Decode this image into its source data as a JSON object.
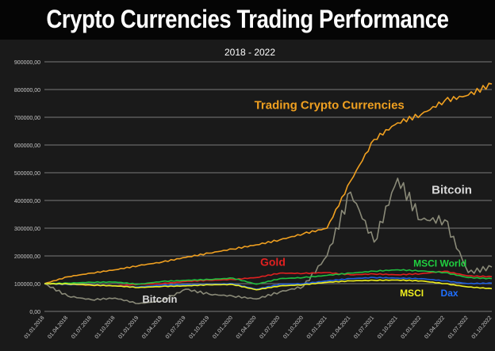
{
  "title": "Crypto Currencies Trading Performance",
  "chart_data": {
    "type": "line",
    "subtitle": "2018 - 2022",
    "ylim": [
      0,
      900000
    ],
    "yticks": [
      0,
      100000,
      200000,
      300000,
      400000,
      500000,
      600000,
      700000,
      800000,
      900000
    ],
    "ytick_labels": [
      "0,00",
      "100000,00",
      "200000,00",
      "300000,00",
      "400000,00",
      "500000,00",
      "600000,00",
      "700000,00",
      "800000,00",
      "900000,00"
    ],
    "x_categories": [
      "01.01.2018",
      "01.04.2018",
      "01.07.2018",
      "01.10.2018",
      "01.01.2019",
      "01.04.2019",
      "01.07.2019",
      "01.10.2019",
      "01.01.2020",
      "01.04.2020",
      "01.07.2020",
      "01.10.2020",
      "01.01.2021",
      "01.04.2021",
      "01.07.2021",
      "01.10.2021",
      "01.01.2022",
      "01.04.2022",
      "01.07.2022",
      "01.10.2022"
    ],
    "grid": true,
    "series": [
      {
        "name": "Trading Crypto Currencies",
        "color": "#f0a020",
        "values": [
          100000,
          125000,
          138000,
          150000,
          165000,
          178000,
          195000,
          210000,
          225000,
          240000,
          258000,
          280000,
          300000,
          470000,
          620000,
          680000,
          710000,
          760000,
          780000,
          820000
        ]
      },
      {
        "name": "Bitcoin",
        "color": "#8a8a78",
        "values": [
          100000,
          55000,
          42000,
          48000,
          28000,
          38000,
          80000,
          62000,
          55000,
          45000,
          70000,
          90000,
          200000,
          430000,
          250000,
          480000,
          330000,
          330000,
          140000,
          160000
        ]
      },
      {
        "name": "Gold",
        "color": "#e02020",
        "values": [
          100000,
          98000,
          94000,
          92000,
          98000,
          100000,
          108000,
          112000,
          115000,
          122000,
          138000,
          137000,
          140000,
          132000,
          135000,
          132000,
          136000,
          145000,
          128000,
          125000
        ]
      },
      {
        "name": "MSCI World",
        "color": "#20c040",
        "values": [
          100000,
          102000,
          105000,
          106000,
          98000,
          108000,
          112000,
          115000,
          120000,
          98000,
          118000,
          122000,
          130000,
          138000,
          145000,
          150000,
          146000,
          140000,
          122000,
          118000
        ]
      },
      {
        "name": "Dax",
        "color": "#2060e0",
        "values": [
          100000,
          97000,
          96000,
          92000,
          88000,
          95000,
          96000,
          98000,
          100000,
          80000,
          98000,
          100000,
          110000,
          118000,
          122000,
          120000,
          118000,
          110000,
          100000,
          102000
        ]
      },
      {
        "name": "MSCI",
        "color": "#f0f020",
        "values": [
          100000,
          99000,
          95000,
          92000,
          86000,
          90000,
          92000,
          96000,
          97000,
          78000,
          92000,
          96000,
          105000,
          110000,
          112000,
          113000,
          110000,
          100000,
          88000,
          82000
        ]
      }
    ],
    "annotations": [
      {
        "text": "Trading Crypto Currencies",
        "color": "#f0a020",
        "x": 12.1,
        "y": 730000,
        "size": 15
      },
      {
        "text": "Bitcoin",
        "color": "#d8d8d8",
        "x": 17.3,
        "y": 425000,
        "size": 15
      },
      {
        "text": "Gold",
        "color": "#e02020",
        "x": 9.7,
        "y": 165000,
        "size": 14
      },
      {
        "text": "MSCI World",
        "color": "#20d040",
        "x": 16.8,
        "y": 162000,
        "size": 12
      },
      {
        "text": "Bitcoin",
        "color": "#d8d8d8",
        "x": 4.9,
        "y": 32000,
        "size": 13
      },
      {
        "text": "MSCI",
        "color": "#f0f020",
        "x": 15.6,
        "y": 55000,
        "size": 12
      },
      {
        "text": "Dax",
        "color": "#2070ff",
        "x": 17.2,
        "y": 55000,
        "size": 12
      }
    ]
  }
}
